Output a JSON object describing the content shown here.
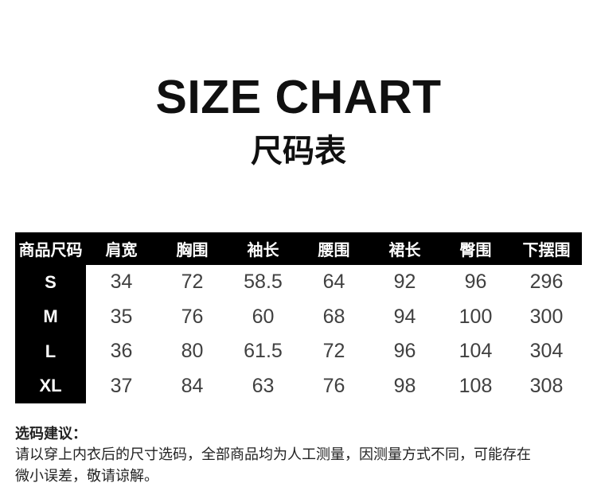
{
  "chart_data": {
    "type": "table",
    "title": "SIZE CHART",
    "subtitle": "尺码表",
    "columns": [
      "商品尺码",
      "肩宽",
      "胸围",
      "袖长",
      "腰围",
      "裙长",
      "臀围",
      "下摆围"
    ],
    "rows": [
      [
        "S",
        "34",
        "72",
        "58.5",
        "64",
        "92",
        "96",
        "296"
      ],
      [
        "M",
        "35",
        "76",
        "60",
        "68",
        "94",
        "100",
        "300"
      ],
      [
        "L",
        "36",
        "80",
        "61.5",
        "72",
        "96",
        "104",
        "304"
      ],
      [
        "XL",
        "37",
        "84",
        "63",
        "76",
        "98",
        "108",
        "308"
      ]
    ]
  },
  "notes": {
    "heading": "选码建议：",
    "lines": [
      "请以穿上内衣后的尺寸选码，全部商品均为人工测量，因测量方式不同，可能存在",
      "微小误差，敬请谅解。"
    ]
  },
  "colors": {
    "page_bg": "#ffffff",
    "header_bg": "#000000",
    "header_text": "#ffffff",
    "size_col_bg": "#000000",
    "size_col_text": "#ffffff",
    "value_text": "#404040",
    "title_text": "#101010",
    "note_text": "#222222"
  }
}
